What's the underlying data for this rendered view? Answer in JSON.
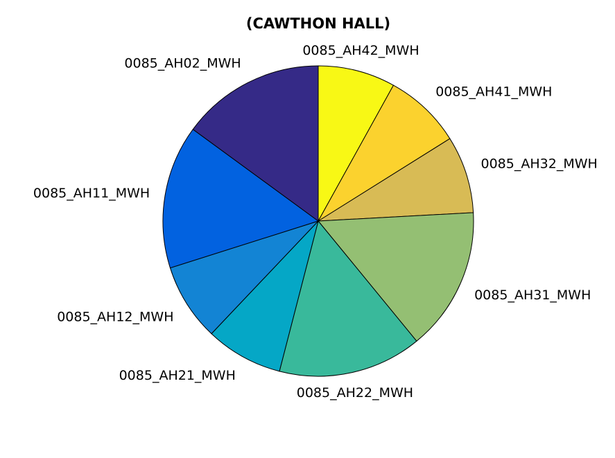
{
  "chart_data": {
    "type": "pie",
    "title": "(CAWTHON HALL)",
    "direction": "clockwise from top",
    "slices": [
      {
        "label": "0085_AH42_MWH",
        "value": 8.4,
        "color": "#f8f815"
      },
      {
        "label": "0085_AH41_MWH",
        "value": 8.4,
        "color": "#fbd22e"
      },
      {
        "label": "0085_AH32_MWH",
        "value": 8.4,
        "color": "#d8bb55"
      },
      {
        "label": "0085_AH31_MWH",
        "value": 15.6,
        "color": "#94bf73"
      },
      {
        "label": "0085_AH22_MWH",
        "value": 15.6,
        "color": "#39b99b"
      },
      {
        "label": "0085_AH21_MWH",
        "value": 8.4,
        "color": "#05a7c6"
      },
      {
        "label": "0085_AH12_MWH",
        "value": 8.4,
        "color": "#1384d4"
      },
      {
        "label": "0085_AH11_MWH",
        "value": 15.6,
        "color": "#0262e0"
      },
      {
        "label": "0085_AH02_MWH",
        "value": 15.6,
        "color": "#352a87"
      }
    ]
  }
}
